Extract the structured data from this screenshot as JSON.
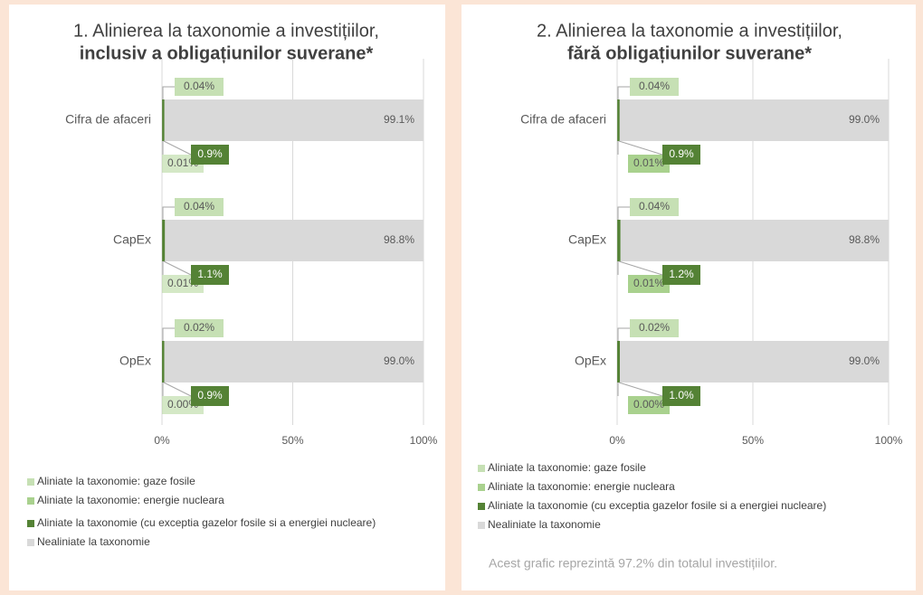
{
  "chart_data": [
    {
      "type": "bar",
      "orientation": "horizontal",
      "stacked": true,
      "title": "1. Alinierea la taxonomie a investițiilor,",
      "subtitle": "inclusiv a obligațiunilor suverane*",
      "categories": [
        "Cifra de afaceri",
        "CapEx",
        "OpEx"
      ],
      "series": [
        {
          "name": "Aliniate la taxonomie: gaze fosile",
          "color": "#c6e0b4",
          "values": [
            0.04,
            0.04,
            0.02
          ],
          "value_labels": [
            "0.04%",
            "0.04%",
            "0.02%"
          ]
        },
        {
          "name": "Aliniate la taxonomie: energie nucleara",
          "color": "#a9d18e",
          "values": [
            0.01,
            0.01,
            0.0
          ],
          "value_labels": [
            "0.01%",
            "0.01%",
            "0.00%"
          ]
        },
        {
          "name": "Aliniate la taxonomie (cu exceptia gazelor fosile si a energiei nucleare)",
          "color": "#548235",
          "values": [
            0.9,
            1.1,
            0.9
          ],
          "value_labels": [
            "0.9%",
            "1.1%",
            "0.9%"
          ]
        },
        {
          "name": "Nealiniate la taxonomie",
          "color": "#d9d9d9",
          "values": [
            99.1,
            98.8,
            99.0
          ],
          "value_labels": [
            "99.1%",
            "98.8%",
            "99.0%"
          ]
        }
      ],
      "xlim": [
        0,
        100
      ],
      "xticks": [
        {
          "value": 0,
          "label": "0%"
        },
        {
          "value": 50,
          "label": "50%"
        },
        {
          "value": 100,
          "label": "100%"
        }
      ],
      "grid": true,
      "legend": "bottom"
    },
    {
      "type": "bar",
      "orientation": "horizontal",
      "stacked": true,
      "title": "2. Alinierea la taxonomie a investițiilor,",
      "subtitle": "fără obligațiunilor suverane*",
      "categories": [
        "Cifra de afaceri",
        "CapEx",
        "OpEx"
      ],
      "series": [
        {
          "name": "Aliniate la taxonomie: gaze fosile",
          "color": "#c6e0b4",
          "values": [
            0.04,
            0.04,
            0.02
          ],
          "value_labels": [
            "0.04%",
            "0.04%",
            "0.02%"
          ]
        },
        {
          "name": "Aliniate la taxonomie: energie nucleara",
          "color": "#a9d18e",
          "values": [
            0.01,
            0.01,
            0.0
          ],
          "value_labels": [
            "0.01%",
            "0.01%",
            "0.00%"
          ]
        },
        {
          "name": "Aliniate la taxonomie (cu exceptia gazelor fosile si a energiei nucleare)",
          "color": "#548235",
          "values": [
            0.9,
            1.2,
            1.0
          ],
          "value_labels": [
            "0.9%",
            "1.2%",
            "1.0%"
          ]
        },
        {
          "name": "Nealiniate la taxonomie",
          "color": "#d9d9d9",
          "values": [
            99.0,
            98.8,
            99.0
          ],
          "value_labels": [
            "99.0%",
            "98.8%",
            "99.0%"
          ]
        }
      ],
      "xlim": [
        0,
        100
      ],
      "xticks": [
        {
          "value": 0,
          "label": "0%"
        },
        {
          "value": 50,
          "label": "50%"
        },
        {
          "value": 100,
          "label": "100%"
        }
      ],
      "grid": true,
      "legend": "bottom",
      "annotation": "Acest grafic reprezintă 97.2% din totalul investițiilor."
    }
  ]
}
